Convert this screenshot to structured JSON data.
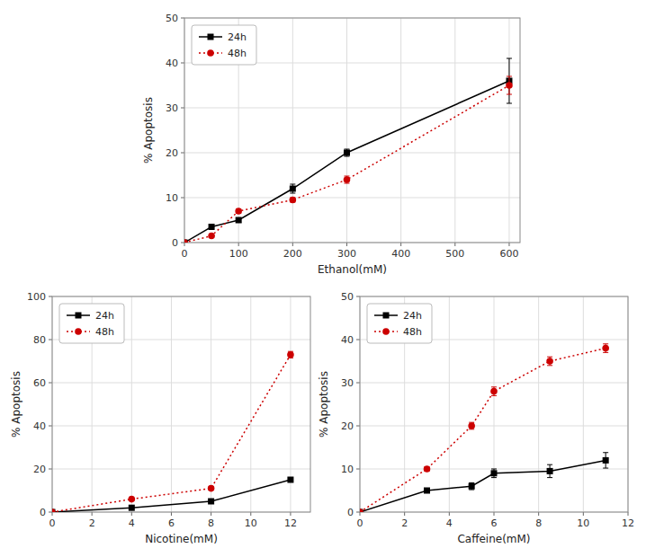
{
  "chart_data": [
    {
      "type": "line",
      "x": [
        0,
        50,
        100,
        200,
        300,
        600
      ],
      "xlabel": "Ethanol(mM)",
      "ylabel": "% Apoptosis",
      "xlim": [
        0,
        620
      ],
      "ylim": [
        0,
        50
      ],
      "xticks": [
        0,
        100,
        200,
        300,
        400,
        500,
        600
      ],
      "yticks": [
        0,
        10,
        20,
        30,
        40,
        50
      ],
      "grid": true,
      "legend": "upper left",
      "series": [
        {
          "name": "24h",
          "color": "#000000",
          "marker": "square",
          "line_style": "solid",
          "values": [
            0,
            3.5,
            5.0,
            12.0,
            20.0,
            36.0
          ],
          "errors": [
            0.0,
            0.3,
            0.5,
            1.0,
            0.8,
            5.0
          ]
        },
        {
          "name": "48h",
          "color": "#cc0000",
          "marker": "circle",
          "line_style": "dotted",
          "values": [
            0,
            1.5,
            7.0,
            9.5,
            14.0,
            35.0
          ],
          "errors": [
            0.0,
            0.3,
            0.5,
            0.5,
            0.8,
            2.0
          ]
        }
      ]
    },
    {
      "type": "line",
      "x": [
        0,
        4,
        8,
        12
      ],
      "xlabel": "Nicotine(mM)",
      "ylabel": "% Apoptosis",
      "xlim": [
        0,
        13
      ],
      "ylim": [
        0,
        100
      ],
      "xticks": [
        0,
        2,
        4,
        6,
        8,
        10,
        12
      ],
      "yticks": [
        0,
        20,
        40,
        60,
        80,
        100
      ],
      "grid": true,
      "legend": "upper left",
      "series": [
        {
          "name": "24h",
          "color": "#000000",
          "marker": "square",
          "line_style": "solid",
          "values": [
            0,
            2.0,
            5.0,
            15.0
          ],
          "errors": [
            0.0,
            0.3,
            0.5,
            0.8
          ]
        },
        {
          "name": "48h",
          "color": "#cc0000",
          "marker": "circle",
          "line_style": "dotted",
          "values": [
            0,
            6.0,
            11.0,
            73.0
          ],
          "errors": [
            0.0,
            0.5,
            0.8,
            1.5
          ]
        }
      ]
    },
    {
      "type": "line",
      "x": [
        0,
        3,
        5,
        6,
        8.5,
        11
      ],
      "xlabel": "Caffeine(mM)",
      "ylabel": "% Apoptosis",
      "xlim": [
        0,
        12
      ],
      "ylim": [
        0,
        50
      ],
      "xticks": [
        0,
        2,
        4,
        6,
        8,
        10,
        12
      ],
      "yticks": [
        0,
        10,
        20,
        30,
        40,
        50
      ],
      "grid": true,
      "legend": "upper left",
      "series": [
        {
          "name": "24h",
          "color": "#000000",
          "marker": "square",
          "line_style": "solid",
          "values": [
            0,
            5.0,
            6.0,
            9.0,
            9.5,
            12.0
          ],
          "errors": [
            0.0,
            0.5,
            0.8,
            1.0,
            1.5,
            1.8
          ]
        },
        {
          "name": "48h",
          "color": "#cc0000",
          "marker": "circle",
          "line_style": "dotted",
          "values": [
            0,
            10.0,
            20.0,
            28.0,
            35.0,
            38.0
          ],
          "errors": [
            0.0,
            0.5,
            0.8,
            1.0,
            1.0,
            1.0
          ]
        }
      ]
    }
  ]
}
